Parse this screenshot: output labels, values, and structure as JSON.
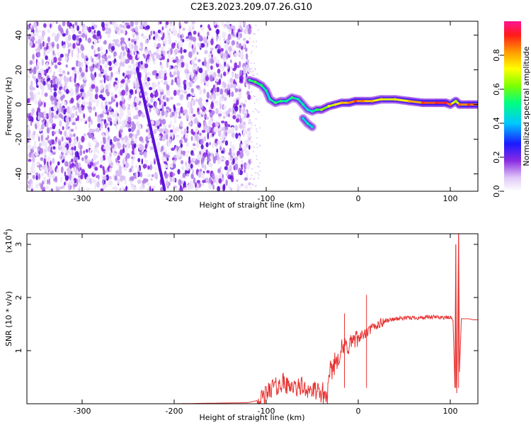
{
  "title": "C2E3.2023.209.07.26.G10",
  "chart_data": [
    {
      "type": "heatmap",
      "xlabel": "Height of straight line (km)",
      "ylabel": "Frequency (Hz)",
      "xlim": [
        -360,
        130
      ],
      "ylim": [
        -50,
        48
      ],
      "x_ticks": [
        "-300",
        "-200",
        "-100",
        "0",
        "100"
      ],
      "x_tick_values": [
        -300,
        -200,
        -100,
        0,
        100
      ],
      "y_ticks": [
        "-40",
        "-20",
        "0",
        "20",
        "40"
      ],
      "y_tick_values": [
        -40,
        -20,
        0,
        20,
        40
      ],
      "noise_region_x": [
        -360,
        -118
      ],
      "ridge_points": [
        {
          "x": -118,
          "y": 14,
          "amp": 0.5
        },
        {
          "x": -112,
          "y": 13,
          "amp": 0.55
        },
        {
          "x": -105,
          "y": 11,
          "amp": 0.5
        },
        {
          "x": -100,
          "y": 8,
          "amp": 0.45
        },
        {
          "x": -96,
          "y": 3,
          "amp": 0.45
        },
        {
          "x": -90,
          "y": 1,
          "amp": 0.5
        },
        {
          "x": -84,
          "y": 2,
          "amp": 0.5
        },
        {
          "x": -78,
          "y": 2,
          "amp": 0.45
        },
        {
          "x": -72,
          "y": 4,
          "amp": 0.5
        },
        {
          "x": -65,
          "y": 3,
          "amp": 0.45
        },
        {
          "x": -60,
          "y": 0,
          "amp": 0.45
        },
        {
          "x": -55,
          "y": -3,
          "amp": 0.4
        },
        {
          "x": -50,
          "y": -4,
          "amp": 0.45
        },
        {
          "x": -45,
          "y": -3,
          "amp": 0.5
        },
        {
          "x": -40,
          "y": -3,
          "amp": 0.6
        },
        {
          "x": -32,
          "y": -1,
          "amp": 0.65
        },
        {
          "x": -25,
          "y": 0,
          "amp": 0.7
        },
        {
          "x": -18,
          "y": 1,
          "amp": 0.75
        },
        {
          "x": -10,
          "y": 1,
          "amp": 0.8
        },
        {
          "x": -3,
          "y": 2,
          "amp": 0.85
        },
        {
          "x": 5,
          "y": 2,
          "amp": 0.8
        },
        {
          "x": 15,
          "y": 2,
          "amp": 0.75
        },
        {
          "x": 25,
          "y": 3,
          "amp": 0.7
        },
        {
          "x": 40,
          "y": 3,
          "amp": 0.7
        },
        {
          "x": 55,
          "y": 2,
          "amp": 0.75
        },
        {
          "x": 70,
          "y": 1,
          "amp": 0.85
        },
        {
          "x": 85,
          "y": 1,
          "amp": 0.9
        },
        {
          "x": 95,
          "y": 1,
          "amp": 0.9
        },
        {
          "x": 100,
          "y": 0,
          "amp": 0.8
        },
        {
          "x": 106,
          "y": 2,
          "amp": 0.6
        },
        {
          "x": 110,
          "y": 0,
          "amp": 0.8
        },
        {
          "x": 120,
          "y": 0,
          "amp": 0.85
        },
        {
          "x": 130,
          "y": 0,
          "amp": 0.85
        }
      ],
      "side_branch_points": [
        {
          "x": -60,
          "y": -8,
          "amp": 0.4
        },
        {
          "x": -55,
          "y": -11,
          "amp": 0.45
        },
        {
          "x": -50,
          "y": -13,
          "amp": 0.4
        }
      ],
      "colorbar": {
        "label": "Normalized spectral amplitude",
        "ticks": [
          "0.0",
          "0.2",
          "0.4",
          "0.6",
          "0.8"
        ],
        "tick_values": [
          0.0,
          0.2,
          0.4,
          0.6,
          0.8
        ],
        "range": [
          0,
          1
        ]
      }
    },
    {
      "type": "line",
      "xlabel": "Height of straight line (km)",
      "ylabel": "SNR (10 * v/v)",
      "scale_note": "(x10",
      "scale_exp": "4",
      "scale_close": ")",
      "xlim": [
        -360,
        130
      ],
      "ylim": [
        0,
        3.2
      ],
      "x_ticks": [
        "-300",
        "-200",
        "-100",
        "0",
        "100"
      ],
      "x_tick_values": [
        -300,
        -200,
        -100,
        0,
        100
      ],
      "y_ticks": [
        "1",
        "2",
        "3"
      ],
      "y_tick_values": [
        1,
        2,
        3
      ],
      "series": [
        {
          "color": "#e8312f",
          "x": [
            -360,
            -300,
            -200,
            -120,
            -105,
            -98,
            -92,
            -88,
            -82,
            -78,
            -74,
            -70,
            -66,
            -62,
            -58,
            -54,
            -50,
            -46,
            -42,
            -38,
            -34,
            -30,
            -26,
            -22,
            -18,
            -15,
            -12,
            -9,
            -6,
            -3,
            0,
            3,
            6,
            9,
            12,
            15,
            20,
            25,
            30,
            35,
            40,
            50,
            60,
            70,
            80,
            90,
            95,
            100,
            103,
            105,
            106,
            107,
            108,
            109,
            110,
            112,
            115,
            120,
            125,
            130
          ],
          "y": [
            0.0,
            0.0,
            0.0,
            0.02,
            0.08,
            0.22,
            0.35,
            0.3,
            0.42,
            0.32,
            0.38,
            0.3,
            0.28,
            0.35,
            0.25,
            0.3,
            0.22,
            0.25,
            0.18,
            0.2,
            0.12,
            0.6,
            0.75,
            0.9,
            1.0,
            1.05,
            1.1,
            1.12,
            1.2,
            1.15,
            1.25,
            1.28,
            1.3,
            1.33,
            1.38,
            1.42,
            1.48,
            1.52,
            1.56,
            1.58,
            1.6,
            1.61,
            1.62,
            1.62,
            1.63,
            1.63,
            1.62,
            1.62,
            1.6,
            0.3,
            3.0,
            0.2,
            1.4,
            3.2,
            0.6,
            1.6,
            1.6,
            1.6,
            1.58,
            1.58
          ]
        }
      ]
    }
  ]
}
